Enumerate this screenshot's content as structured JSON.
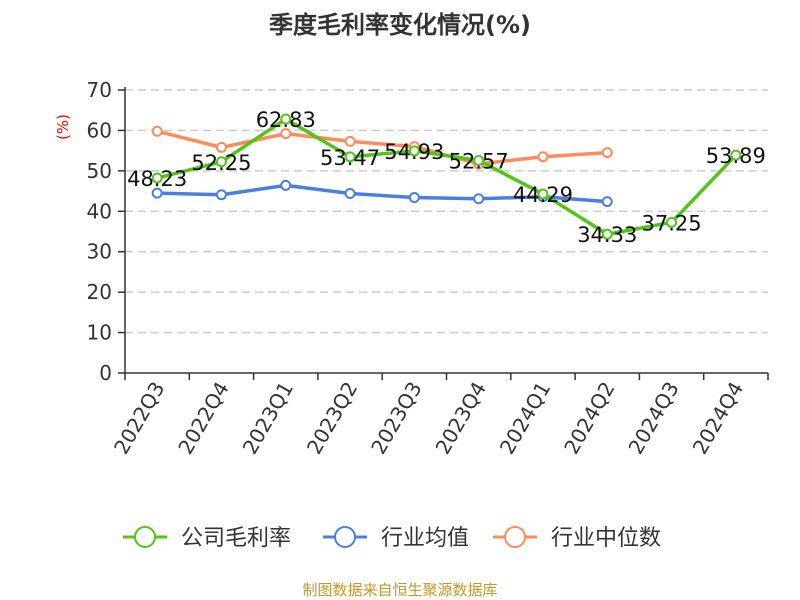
{
  "chart_data": {
    "type": "line",
    "title": "季度毛利率变化情况(%)",
    "ylabel": "(%)",
    "ylim": [
      0,
      70
    ],
    "yticks": [
      0,
      10,
      20,
      30,
      40,
      50,
      60,
      70
    ],
    "grid": true,
    "legend_position": "bottom",
    "categories": [
      "2022Q3",
      "2022Q4",
      "2023Q1",
      "2023Q2",
      "2023Q3",
      "2023Q4",
      "2024Q1",
      "2024Q2",
      "2024Q3",
      "2024Q4"
    ],
    "series": [
      {
        "name": "公司毛利率",
        "color": "#52c41a",
        "values": [
          48.23,
          52.25,
          62.83,
          53.47,
          54.93,
          52.57,
          44.29,
          34.33,
          37.25,
          53.89
        ],
        "labels": [
          "48.23",
          "52.25",
          "62.83",
          "53.47",
          "54.93",
          "52.57",
          "44.29",
          "34.33",
          "37.25",
          "53.89"
        ]
      },
      {
        "name": "行业均值",
        "color": "#4a7fe0",
        "values": [
          44.5,
          44.1,
          46.4,
          44.4,
          43.4,
          43.1,
          43.6,
          42.4,
          null,
          null
        ]
      },
      {
        "name": "行业中位数",
        "color": "#ff8c5a",
        "values": [
          59.8,
          55.8,
          59.2,
          57.3,
          56.0,
          51.7,
          53.5,
          54.5,
          null,
          null
        ]
      }
    ]
  },
  "footer": "制图数据来自恒生聚源数据库"
}
